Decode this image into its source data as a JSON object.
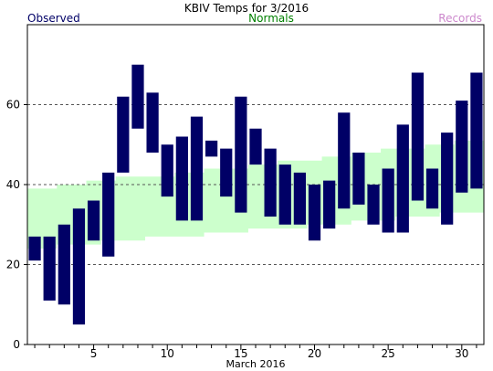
{
  "chart_data": {
    "type": "bar",
    "title": "KBIV Temps for 3/2016",
    "legend": {
      "observed": "Observed",
      "normals": "Normals",
      "records": "Records"
    },
    "xlabel": "March 2016",
    "ylabel": "",
    "xlim": [
      0.5,
      31.5
    ],
    "ylim": [
      0,
      80
    ],
    "x_ticks": [
      5,
      10,
      15,
      20,
      25,
      30
    ],
    "y_ticks": [
      0,
      20,
      40,
      60
    ],
    "grid_y": [
      20,
      40,
      60
    ],
    "days": [
      1,
      2,
      3,
      4,
      5,
      6,
      7,
      8,
      9,
      10,
      11,
      12,
      13,
      14,
      15,
      16,
      17,
      18,
      19,
      20,
      21,
      22,
      23,
      24,
      25,
      26,
      27,
      28,
      29,
      30,
      31
    ],
    "observed_high": [
      27,
      27,
      30,
      34,
      36,
      43,
      62,
      70,
      63,
      50,
      52,
      57,
      51,
      49,
      62,
      54,
      49,
      45,
      43,
      40,
      41,
      58,
      48,
      40,
      44,
      55,
      68,
      44,
      53,
      61,
      68
    ],
    "observed_low": [
      21,
      11,
      10,
      5,
      26,
      22,
      43,
      54,
      48,
      37,
      31,
      31,
      47,
      37,
      33,
      45,
      32,
      30,
      30,
      26,
      29,
      34,
      35,
      30,
      28,
      28,
      36,
      34,
      30,
      38,
      39
    ],
    "normal_high": [
      39,
      39,
      40,
      40,
      41,
      41,
      42,
      42,
      42,
      42,
      43,
      43,
      44,
      44,
      44,
      45,
      45,
      46,
      46,
      46,
      47,
      47,
      48,
      48,
      49,
      49,
      49,
      50,
      50,
      51,
      51
    ],
    "normal_low": [
      24,
      24,
      25,
      25,
      25,
      26,
      26,
      26,
      27,
      27,
      27,
      27,
      28,
      28,
      28,
      29,
      29,
      29,
      29,
      30,
      30,
      30,
      31,
      31,
      31,
      32,
      32,
      32,
      33,
      33,
      33
    ],
    "colors": {
      "observed": "#000066",
      "normals_fill": "#ccffcc",
      "normals_label": "#008000",
      "records_label": "#cc88cc",
      "grid": "#555555",
      "axis": "#000000"
    }
  }
}
